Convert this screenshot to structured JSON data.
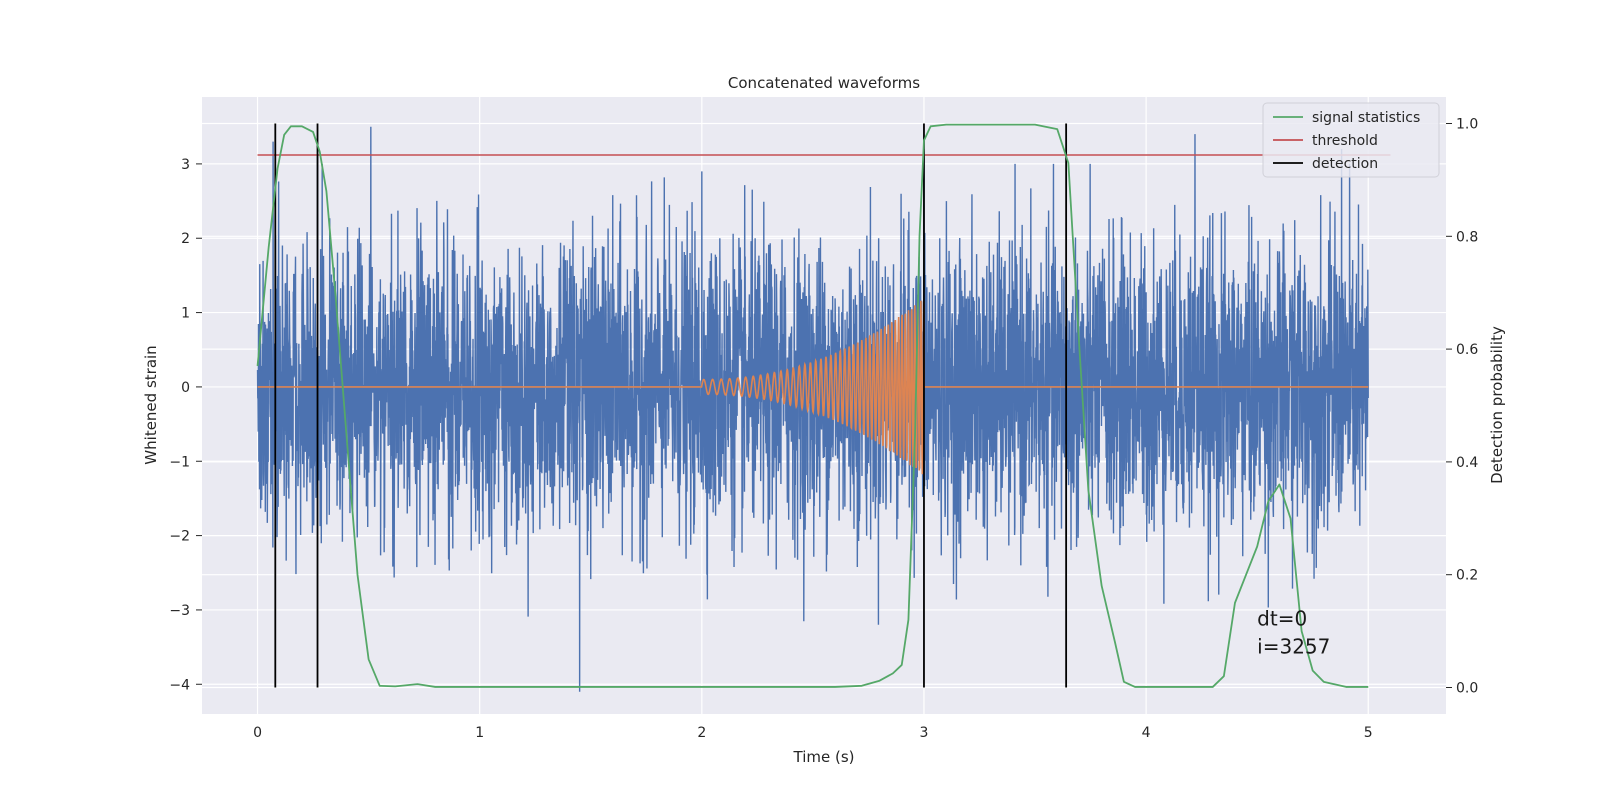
{
  "chart_data": {
    "type": "line",
    "title": "Concatenated waveforms",
    "xlabel": "Time (s)",
    "ylabel": "Whitened strain",
    "y2label": "Detection probability",
    "xlim": [
      -0.25,
      5.35
    ],
    "ylim": [
      -4.4,
      3.9
    ],
    "y2lim": [
      -0.047,
      1.047
    ],
    "xticks": [
      "0",
      "1",
      "2",
      "3",
      "4",
      "5"
    ],
    "yticks": [
      "3",
      "2",
      "1",
      "0",
      "−1",
      "−2",
      "−3",
      "−4"
    ],
    "y2ticks": [
      "1.0",
      "0.8",
      "0.6",
      "0.4",
      "0.2",
      "0.0"
    ],
    "grid": true,
    "legend_position": "top-right",
    "legend": [
      {
        "label": "signal statistics",
        "color": "#55a868"
      },
      {
        "label": "threshold",
        "color": "#c44e52"
      },
      {
        "label": "detection",
        "color": "#000000"
      }
    ],
    "series": [
      {
        "kind": "noise",
        "color": "#4c72b0",
        "x_range": [
          0,
          5
        ],
        "envelope": {
          "upper_typical": 1.3,
          "lower_typical": -1.3
        },
        "notable_peaks": [
          {
            "x": 0.07,
            "y": 3.3
          },
          {
            "x": 0.27,
            "y": 3.1
          },
          {
            "x": 0.51,
            "y": 3.5
          },
          {
            "x": 1.45,
            "y": -4.1
          },
          {
            "x": 2.0,
            "y": 2.9
          },
          {
            "x": 3.0,
            "y": 3.2
          },
          {
            "x": 4.22,
            "y": 3.4
          },
          {
            "x": 4.88,
            "y": 3.2
          }
        ]
      },
      {
        "kind": "chirp",
        "color": "#dd8452",
        "x_range": [
          0,
          5
        ],
        "start": 2.0,
        "end": 3.0,
        "start_amplitude": 0.1,
        "end_amplitude": 1.2,
        "start_frequency_hz": 25,
        "end_frequency_hz": 75
      },
      {
        "name": "signal statistics",
        "axis": "right",
        "color": "#55a868",
        "points": [
          [
            0.0,
            0.57
          ],
          [
            0.05,
            0.78
          ],
          [
            0.09,
            0.92
          ],
          [
            0.12,
            0.98
          ],
          [
            0.15,
            0.995
          ],
          [
            0.2,
            0.995
          ],
          [
            0.25,
            0.985
          ],
          [
            0.28,
            0.95
          ],
          [
            0.31,
            0.88
          ],
          [
            0.35,
            0.7
          ],
          [
            0.4,
            0.45
          ],
          [
            0.45,
            0.2
          ],
          [
            0.5,
            0.05
          ],
          [
            0.55,
            0.003
          ],
          [
            0.62,
            0.002
          ],
          [
            0.72,
            0.006
          ],
          [
            0.8,
            0.001
          ],
          [
            1.0,
            0.001
          ],
          [
            2.0,
            0.001
          ],
          [
            2.6,
            0.001
          ],
          [
            2.72,
            0.003
          ],
          [
            2.8,
            0.012
          ],
          [
            2.86,
            0.025
          ],
          [
            2.9,
            0.04
          ],
          [
            2.93,
            0.12
          ],
          [
            2.96,
            0.45
          ],
          [
            2.98,
            0.8
          ],
          [
            3.0,
            0.97
          ],
          [
            3.03,
            0.995
          ],
          [
            3.1,
            0.998
          ],
          [
            3.5,
            0.998
          ],
          [
            3.6,
            0.99
          ],
          [
            3.65,
            0.93
          ],
          [
            3.7,
            0.6
          ],
          [
            3.74,
            0.35
          ],
          [
            3.8,
            0.18
          ],
          [
            3.86,
            0.08
          ],
          [
            3.9,
            0.01
          ],
          [
            3.95,
            0.001
          ],
          [
            4.3,
            0.001
          ],
          [
            4.35,
            0.02
          ],
          [
            4.4,
            0.15
          ],
          [
            4.45,
            0.2
          ],
          [
            4.5,
            0.25
          ],
          [
            4.55,
            0.33
          ],
          [
            4.6,
            0.36
          ],
          [
            4.65,
            0.3
          ],
          [
            4.7,
            0.1
          ],
          [
            4.75,
            0.03
          ],
          [
            4.8,
            0.01
          ],
          [
            4.9,
            0.001
          ],
          [
            5.0,
            0.001
          ]
        ]
      },
      {
        "name": "threshold",
        "axis": "left",
        "color": "#c44e52",
        "x": [
          0.0,
          5.1
        ],
        "y": [
          3.12,
          3.12
        ]
      },
      {
        "name": "detection",
        "color": "#000000",
        "vlines": [
          0.08,
          0.27,
          3.0,
          3.64
        ]
      }
    ],
    "annotations": [
      {
        "text": "dt=0",
        "x": 4.5,
        "y2": 0.11
      },
      {
        "text": "i=3257",
        "x": 4.5,
        "y2": 0.06
      }
    ]
  }
}
